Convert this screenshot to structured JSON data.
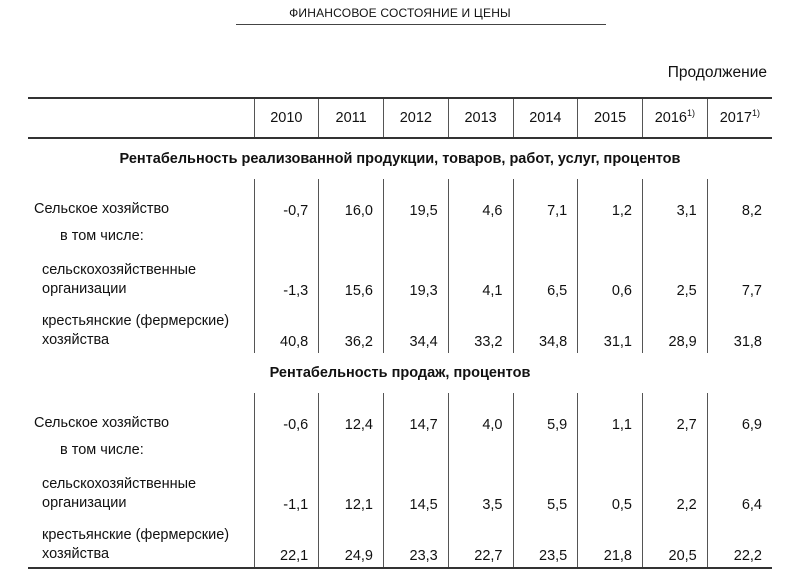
{
  "page": {
    "running_head": "ФИНАНСОВОЕ СОСТОЯНИЕ И ЦЕНЫ",
    "continuation": "Продолжение"
  },
  "table": {
    "years": [
      {
        "year": "2010",
        "note": ""
      },
      {
        "year": "2011",
        "note": ""
      },
      {
        "year": "2012",
        "note": ""
      },
      {
        "year": "2013",
        "note": ""
      },
      {
        "year": "2014",
        "note": ""
      },
      {
        "year": "2015",
        "note": ""
      },
      {
        "year": "2016",
        "note": "1)"
      },
      {
        "year": "2017",
        "note": "1)"
      }
    ],
    "sections": [
      {
        "title": "Рентабельность реализованной продукции, товаров, работ, услуг, процентов",
        "rows": [
          {
            "label": "Сельское хозяйство",
            "values": [
              "-0,7",
              "16,0",
              "19,5",
              "4,6",
              "7,1",
              "1,2",
              "3,1",
              "8,2"
            ]
          },
          {
            "label": "в том числе:",
            "values": []
          },
          {
            "label_line1": "сельскохозяйственные",
            "label_line2": "организации",
            "values": [
              "-1,3",
              "15,6",
              "19,3",
              "4,1",
              "6,5",
              "0,6",
              "2,5",
              "7,7"
            ]
          },
          {
            "label_line1": "крестьянские (фермерские)",
            "label_line2": "хозяйства",
            "values": [
              "40,8",
              "36,2",
              "34,4",
              "33,2",
              "34,8",
              "31,1",
              "28,9",
              "31,8"
            ]
          }
        ]
      },
      {
        "title": "Рентабельность продаж, процентов",
        "rows": [
          {
            "label": "Сельское хозяйство",
            "values": [
              "-0,6",
              "12,4",
              "14,7",
              "4,0",
              "5,9",
              "1,1",
              "2,7",
              "6,9"
            ]
          },
          {
            "label": "в том числе:",
            "values": []
          },
          {
            "label_line1": "сельскохозяйственные",
            "label_line2": "организации",
            "values": [
              "-1,1",
              "12,1",
              "14,5",
              "3,5",
              "5,5",
              "0,5",
              "2,2",
              "6,4"
            ]
          },
          {
            "label_line1": "крестьянские (фермерские)",
            "label_line2": "хозяйства",
            "values": [
              "22,1",
              "24,9",
              "23,3",
              "22,7",
              "23,5",
              "21,8",
              "20,5",
              "22,2"
            ]
          }
        ]
      }
    ]
  }
}
